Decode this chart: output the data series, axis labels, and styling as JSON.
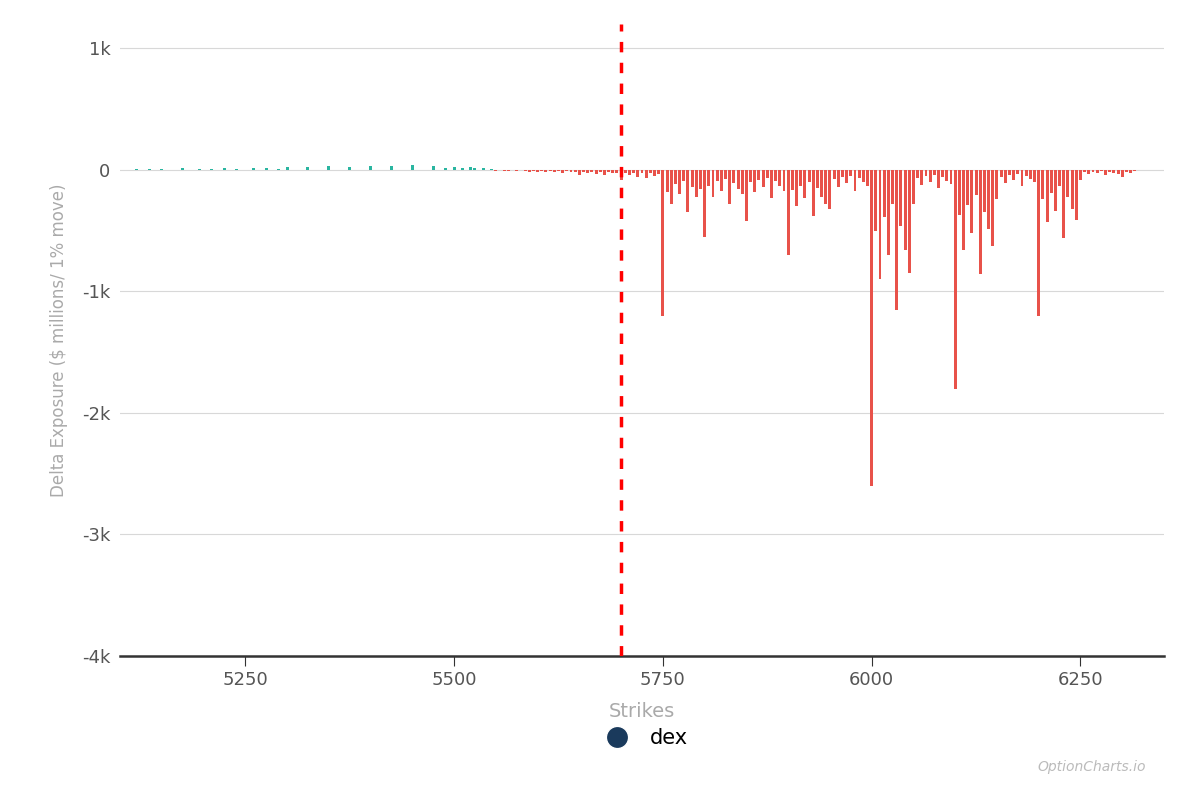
{
  "xlabel": "Strikes",
  "ylabel": "Delta Exposure ($ millions/ 1% move)",
  "xlim": [
    5100,
    6350
  ],
  "ylim": [
    -4000,
    1200
  ],
  "yticks": [
    1000,
    0,
    -1000,
    -2000,
    -3000,
    -4000
  ],
  "ytick_labels": [
    "1k",
    "0",
    "-1k",
    "-2k",
    "-3k",
    "-4k"
  ],
  "xticks": [
    5250,
    5500,
    5750,
    6000,
    6250
  ],
  "vline_x": 5700,
  "watermark": "OptionCharts.io",
  "legend_label": "dex",
  "legend_color": "#1a3a5c",
  "bar_color_positive": "#2ab5a0",
  "bar_color_negative": "#e8524a",
  "bar_width": 3.5,
  "strikes": [
    5120,
    5135,
    5150,
    5175,
    5195,
    5210,
    5225,
    5240,
    5260,
    5275,
    5290,
    5300,
    5325,
    5350,
    5375,
    5400,
    5425,
    5450,
    5475,
    5490,
    5500,
    5510,
    5520,
    5525,
    5535,
    5545,
    5550,
    5555,
    5560,
    5565,
    5575,
    5585,
    5590,
    5595,
    5600,
    5605,
    5610,
    5615,
    5620,
    5625,
    5630,
    5635,
    5640,
    5645,
    5650,
    5655,
    5660,
    5665,
    5670,
    5675,
    5680,
    5685,
    5690,
    5695,
    5700,
    5705,
    5710,
    5715,
    5720,
    5725,
    5730,
    5735,
    5740,
    5745,
    5750,
    5755,
    5760,
    5765,
    5770,
    5775,
    5780,
    5785,
    5790,
    5795,
    5800,
    5805,
    5810,
    5815,
    5820,
    5825,
    5830,
    5835,
    5840,
    5845,
    5850,
    5855,
    5860,
    5865,
    5870,
    5875,
    5880,
    5885,
    5890,
    5895,
    5900,
    5905,
    5910,
    5915,
    5920,
    5925,
    5930,
    5935,
    5940,
    5945,
    5950,
    5955,
    5960,
    5965,
    5970,
    5975,
    5980,
    5985,
    5990,
    5995,
    6000,
    6005,
    6010,
    6015,
    6020,
    6025,
    6030,
    6035,
    6040,
    6045,
    6050,
    6055,
    6060,
    6065,
    6070,
    6075,
    6080,
    6085,
    6090,
    6095,
    6100,
    6105,
    6110,
    6115,
    6120,
    6125,
    6130,
    6135,
    6140,
    6145,
    6150,
    6155,
    6160,
    6165,
    6170,
    6175,
    6180,
    6185,
    6190,
    6195,
    6200,
    6205,
    6210,
    6215,
    6220,
    6225,
    6230,
    6235,
    6240,
    6245,
    6250,
    6255,
    6260,
    6265,
    6270,
    6275,
    6280,
    6285,
    6290,
    6295,
    6300,
    6305,
    6310,
    6315
  ],
  "dex_values": [
    4,
    6,
    8,
    12,
    5,
    10,
    15,
    8,
    12,
    18,
    10,
    20,
    25,
    30,
    22,
    35,
    28,
    40,
    30,
    18,
    25,
    15,
    20,
    12,
    18,
    10,
    -10,
    -5,
    -8,
    -12,
    -7,
    -10,
    -15,
    -8,
    -20,
    -8,
    -15,
    -10,
    -18,
    -12,
    -25,
    -10,
    -20,
    -15,
    -40,
    -15,
    -25,
    -18,
    -35,
    -20,
    -45,
    -18,
    -30,
    -22,
    -80,
    -25,
    -40,
    -22,
    -55,
    -28,
    -70,
    -30,
    -50,
    -35,
    -1200,
    -180,
    -280,
    -120,
    -200,
    -90,
    -350,
    -140,
    -220,
    -160,
    -550,
    -130,
    -220,
    -95,
    -170,
    -75,
    -280,
    -110,
    -160,
    -200,
    -420,
    -100,
    -180,
    -80,
    -140,
    -65,
    -230,
    -92,
    -135,
    -170,
    -700,
    -165,
    -300,
    -130,
    -230,
    -100,
    -380,
    -150,
    -220,
    -280,
    -320,
    -78,
    -140,
    -62,
    -110,
    -50,
    -175,
    -70,
    -102,
    -130,
    -2600,
    -500,
    -900,
    -390,
    -700,
    -280,
    -1150,
    -460,
    -660,
    -850,
    -280,
    -68,
    -122,
    -54,
    -96,
    -43,
    -152,
    -61,
    -88,
    -113,
    -1800,
    -370,
    -660,
    -290,
    -520,
    -208,
    -860,
    -344,
    -490,
    -630,
    -240,
    -58,
    -105,
    -46,
    -82,
    -37,
    -130,
    -52,
    -75,
    -97,
    -1200,
    -240,
    -430,
    -190,
    -340,
    -136,
    -560,
    -224,
    -320,
    -410,
    -80,
    -20,
    -36,
    -16,
    -28,
    -12,
    -45,
    -18,
    -26,
    -33,
    -55,
    -14,
    -25,
    -11
  ]
}
